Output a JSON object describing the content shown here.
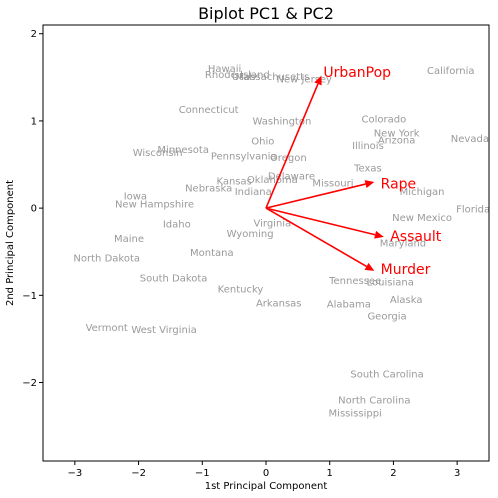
{
  "chart_data": {
    "type": "scatter",
    "title": "Biplot PC1 & PC2",
    "xlabel": "1st Principal Component",
    "ylabel": "2nd Principal Component",
    "xlim": [
      -3.5,
      3.5
    ],
    "ylim": [
      -2.9,
      2.1
    ],
    "xticks": [
      -3,
      -2,
      -1,
      0,
      1,
      2,
      3
    ],
    "yticks": [
      -2,
      -1,
      0,
      1,
      2
    ],
    "grid": false,
    "colors": {
      "points": "#9a9a9a",
      "loadings": "#ff0000"
    },
    "points": [
      {
        "label": "Hawaii",
        "x": -0.65,
        "y": 1.6
      },
      {
        "label": "Rhode Island",
        "x": -0.45,
        "y": 1.53
      },
      {
        "label": "Utah",
        "x": -0.35,
        "y": 1.51
      },
      {
        "label": "Massachusetts",
        "x": 0.1,
        "y": 1.51
      },
      {
        "label": "New Jersey",
        "x": 0.6,
        "y": 1.48
      },
      {
        "label": "California",
        "x": 2.9,
        "y": 1.58
      },
      {
        "label": "Connecticut",
        "x": -0.9,
        "y": 1.13
      },
      {
        "label": "Washington",
        "x": 0.25,
        "y": 1.0
      },
      {
        "label": "Colorado",
        "x": 1.85,
        "y": 1.02
      },
      {
        "label": "New York",
        "x": 2.05,
        "y": 0.86
      },
      {
        "label": "Arizona",
        "x": 2.05,
        "y": 0.78
      },
      {
        "label": "Nevada",
        "x": 3.2,
        "y": 0.8
      },
      {
        "label": "Ohio",
        "x": -0.05,
        "y": 0.77
      },
      {
        "label": "Illinois",
        "x": 1.6,
        "y": 0.72
      },
      {
        "label": "Minnesota",
        "x": -1.3,
        "y": 0.67
      },
      {
        "label": "Wisconsin",
        "x": -1.7,
        "y": 0.64
      },
      {
        "label": "Pennsylvania",
        "x": -0.35,
        "y": 0.6
      },
      {
        "label": "Oregon",
        "x": 0.35,
        "y": 0.58
      },
      {
        "label": "Texas",
        "x": 1.6,
        "y": 0.46
      },
      {
        "label": "Delaware",
        "x": 0.4,
        "y": 0.37
      },
      {
        "label": "Kansas",
        "x": -0.5,
        "y": 0.31
      },
      {
        "label": "Oklahoma",
        "x": 0.1,
        "y": 0.33
      },
      {
        "label": "Missouri",
        "x": 1.05,
        "y": 0.29
      },
      {
        "label": "Nebraska",
        "x": -0.9,
        "y": 0.23
      },
      {
        "label": "Indiana",
        "x": -0.2,
        "y": 0.19
      },
      {
        "label": "Michigan",
        "x": 2.45,
        "y": 0.19
      },
      {
        "label": "Iowa",
        "x": -2.05,
        "y": 0.14
      },
      {
        "label": "New Hampshire",
        "x": -1.75,
        "y": 0.05
      },
      {
        "label": "Florida",
        "x": 3.25,
        "y": -0.01
      },
      {
        "label": "New Mexico",
        "x": 2.45,
        "y": -0.11
      },
      {
        "label": "Idaho",
        "x": -1.4,
        "y": -0.18
      },
      {
        "label": "Virginia",
        "x": 0.1,
        "y": -0.17
      },
      {
        "label": "Wyoming",
        "x": -0.25,
        "y": -0.29
      },
      {
        "label": "Maryland",
        "x": 2.15,
        "y": -0.4
      },
      {
        "label": "Maine",
        "x": -2.15,
        "y": -0.35
      },
      {
        "label": "Montana",
        "x": -0.85,
        "y": -0.51
      },
      {
        "label": "North Dakota",
        "x": -2.5,
        "y": -0.57
      },
      {
        "label": "South Dakota",
        "x": -1.45,
        "y": -0.8
      },
      {
        "label": "Tennessee",
        "x": 1.4,
        "y": -0.83
      },
      {
        "label": "Louisiana",
        "x": 1.95,
        "y": -0.85
      },
      {
        "label": "Kentucky",
        "x": -0.4,
        "y": -0.93
      },
      {
        "label": "Alaska",
        "x": 2.2,
        "y": -1.05
      },
      {
        "label": "Arkansas",
        "x": 0.2,
        "y": -1.09
      },
      {
        "label": "Alabama",
        "x": 1.3,
        "y": -1.1
      },
      {
        "label": "Georgia",
        "x": 1.9,
        "y": -1.24
      },
      {
        "label": "Vermont",
        "x": -2.5,
        "y": -1.37
      },
      {
        "label": "West Virginia",
        "x": -1.6,
        "y": -1.39
      },
      {
        "label": "South Carolina",
        "x": 1.9,
        "y": -1.9
      },
      {
        "label": "North Carolina",
        "x": 1.7,
        "y": -2.2
      },
      {
        "label": "Mississippi",
        "x": 1.4,
        "y": -2.35
      }
    ],
    "loadings": [
      {
        "label": "UrbanPop",
        "x": 0.87,
        "y": 1.52,
        "lx": 0.9,
        "ly": 1.56
      },
      {
        "label": "Rape",
        "x": 1.7,
        "y": 0.3,
        "lx": 1.8,
        "ly": 0.28
      },
      {
        "label": "Assault",
        "x": 1.85,
        "y": -0.33,
        "lx": 1.95,
        "ly": -0.32
      },
      {
        "label": "Murder",
        "x": 1.7,
        "y": -0.72,
        "lx": 1.8,
        "ly": -0.7
      }
    ]
  }
}
